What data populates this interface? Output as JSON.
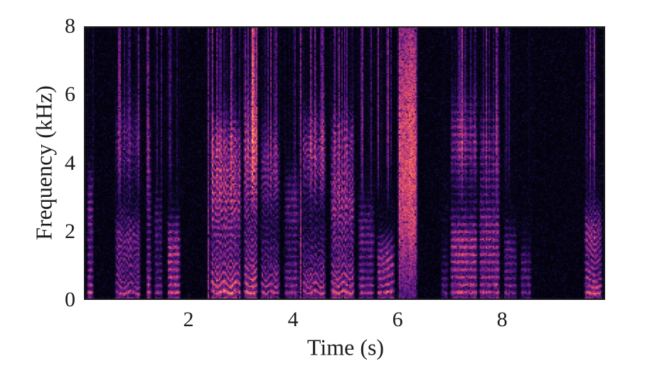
{
  "figure": {
    "background": "#ffffff"
  },
  "chart_data": {
    "type": "heatmap",
    "subtype": "speech-spectrogram",
    "title": "",
    "xlabel": "Time (s)",
    "ylabel": "Frequency (kHz)",
    "xlim": [
      0,
      9.97
    ],
    "ylim": [
      0,
      8
    ],
    "xticks": [
      "2",
      "4",
      "6",
      "8"
    ],
    "yticks": [
      "0",
      "2",
      "4",
      "6",
      "8"
    ],
    "xtick_values": [
      2,
      4,
      6,
      8
    ],
    "ytick_values": [
      0,
      2,
      4,
      6,
      8
    ],
    "grid": false,
    "legend": "none",
    "axis_color": "#1c1c1c",
    "tick_direction": "in",
    "box": true,
    "colormap": {
      "name": "magma",
      "stops": [
        [
          0.0,
          "#000004"
        ],
        [
          0.12,
          "#10092d"
        ],
        [
          0.25,
          "#3b0f70"
        ],
        [
          0.38,
          "#641a80"
        ],
        [
          0.5,
          "#8c2981"
        ],
        [
          0.62,
          "#b73779"
        ],
        [
          0.72,
          "#de4968"
        ],
        [
          0.82,
          "#f7705c"
        ],
        [
          0.9,
          "#fe9f6d"
        ],
        [
          0.96,
          "#fecf92"
        ],
        [
          1.0,
          "#fcfdbf"
        ]
      ]
    },
    "segments": [
      {
        "t0": 0.05,
        "t1": 0.2,
        "kind": "voiced",
        "amp": 1.25,
        "f0": 0.22,
        "decay": 1.1,
        "hf": 0.3,
        "formants": [
          [
            2.6,
            0.8,
            0.35
          ]
        ]
      },
      {
        "t0": 0.58,
        "t1": 1.1,
        "kind": "voiced",
        "amp": 0.95,
        "f0": 0.21,
        "decay": 1.0,
        "hf": 0.42,
        "bend": 0.22,
        "cycles": 1.8,
        "formants": [
          [
            1.8,
            0.5,
            0.4
          ],
          [
            4.6,
            0.8,
            0.3
          ]
        ]
      },
      {
        "t0": 1.18,
        "t1": 1.31,
        "kind": "voiced",
        "amp": 1.25,
        "f0": 0.22,
        "decay": 1.2,
        "hf": 0.5,
        "formants": [
          [
            3.5,
            1.2,
            0.3
          ]
        ]
      },
      {
        "t0": 1.33,
        "t1": 1.52,
        "kind": "voiced",
        "amp": 0.75,
        "f0": 0.21,
        "decay": 1.0,
        "hf": 0.35,
        "formants": [
          [
            2.2,
            0.6,
            0.3
          ]
        ]
      },
      {
        "t0": 1.58,
        "t1": 1.86,
        "kind": "voiced",
        "amp": 1.3,
        "f0": 0.22,
        "decay": 0.9,
        "hf": 0.22,
        "formants": [
          [
            1.5,
            0.5,
            0.45
          ]
        ]
      },
      {
        "t0": 2.38,
        "t1": 2.38,
        "kind": "burst",
        "amp": 0.6
      },
      {
        "t0": 2.41,
        "t1": 3.02,
        "kind": "voiced",
        "amp": 1.45,
        "f0": 0.23,
        "decay": 1.3,
        "hf": 0.3,
        "bend": 0.18,
        "cycles": 2.5,
        "formants": [
          [
            3.1,
            0.8,
            0.5
          ],
          [
            4.5,
            0.6,
            0.35
          ]
        ]
      },
      {
        "t0": 3.04,
        "t1": 3.34,
        "kind": "voiced",
        "amp": 1.35,
        "f0": 0.22,
        "decay": 1.5,
        "hf": 0.65,
        "bend": 0.12,
        "cycles": 1.0,
        "formants": [
          [
            4.2,
            1.2,
            0.5
          ]
        ]
      },
      {
        "t0": 3.36,
        "t1": 3.76,
        "kind": "voiced",
        "amp": 1.0,
        "f0": 0.22,
        "decay": 1.2,
        "hf": 0.35,
        "bend": 0.15,
        "cycles": 2.0,
        "formants": [
          [
            3.8,
            0.8,
            0.4
          ]
        ]
      },
      {
        "t0": 3.82,
        "t1": 4.12,
        "kind": "voiced",
        "amp": 0.9,
        "f0": 0.21,
        "decay": 1.1,
        "hf": 0.4,
        "formants": [
          [
            2.8,
            0.7,
            0.35
          ]
        ]
      },
      {
        "t0": 4.14,
        "t1": 4.14,
        "kind": "burst",
        "amp": 0.7
      },
      {
        "t0": 4.16,
        "t1": 4.64,
        "kind": "voiced",
        "amp": 1.1,
        "f0": 0.22,
        "decay": 1.2,
        "hf": 0.35,
        "bend": 0.2,
        "cycles": 2.0,
        "formants": [
          [
            4.3,
            0.8,
            0.5
          ]
        ]
      },
      {
        "t0": 4.7,
        "t1": 5.2,
        "kind": "voiced",
        "amp": 1.35,
        "f0": 0.23,
        "decay": 1.3,
        "hf": 0.3,
        "bend": 0.15,
        "cycles": 2.0,
        "formants": [
          [
            2.9,
            0.7,
            0.45
          ],
          [
            4.6,
            0.6,
            0.3
          ]
        ]
      },
      {
        "t0": 5.24,
        "t1": 5.58,
        "kind": "voiced",
        "amp": 0.85,
        "f0": 0.21,
        "decay": 1.0,
        "hf": 0.35,
        "formants": [
          [
            2.0,
            0.6,
            0.35
          ]
        ]
      },
      {
        "t0": 5.6,
        "t1": 5.97,
        "kind": "voiced",
        "amp": 1.2,
        "f0": 0.24,
        "decay": 0.8,
        "hf": 0.45,
        "bend": -0.15,
        "cycles": 0.5,
        "formants": [
          [
            1.2,
            0.4,
            0.4
          ]
        ]
      },
      {
        "t0": 6.0,
        "t1": 6.4,
        "kind": "fricative",
        "amp": 0.95,
        "fcut": 1.2
      },
      {
        "t0": 6.82,
        "t1": 7.0,
        "kind": "voiced",
        "amp": 0.55,
        "f0": 0.21,
        "decay": 1.0,
        "hf": 0.5
      },
      {
        "t0": 7.0,
        "t1": 7.55,
        "kind": "voiced",
        "amp": 1.05,
        "f0": 0.22,
        "decay": 1.0,
        "hf": 0.5,
        "formants": [
          [
            1.6,
            0.6,
            0.55
          ],
          [
            4.6,
            0.8,
            0.45
          ]
        ]
      },
      {
        "t0": 7.55,
        "t1": 7.98,
        "kind": "voiced",
        "amp": 1.0,
        "f0": 0.22,
        "decay": 1.0,
        "hf": 0.45,
        "formants": [
          [
            1.8,
            0.7,
            0.5
          ],
          [
            4.2,
            0.9,
            0.35
          ]
        ]
      },
      {
        "t0": 8.02,
        "t1": 8.3,
        "kind": "voiced",
        "amp": 0.7,
        "f0": 0.21,
        "decay": 0.9,
        "hf": 0.4,
        "formants": [
          [
            1.4,
            0.5,
            0.35
          ]
        ]
      },
      {
        "t0": 8.34,
        "t1": 8.58,
        "kind": "voiced",
        "amp": 0.6,
        "f0": 0.22,
        "decay": 0.8,
        "hf": 0.3,
        "formants": [
          [
            1.0,
            0.4,
            0.35
          ]
        ]
      },
      {
        "t0": 9.56,
        "t1": 9.93,
        "kind": "voiced",
        "amp": 1.3,
        "f0": 0.2,
        "decay": 1.0,
        "hf": 0.25,
        "bend": 0.1,
        "cycles": 1.0,
        "formants": [
          [
            1.9,
            0.5,
            0.4
          ]
        ]
      }
    ]
  }
}
